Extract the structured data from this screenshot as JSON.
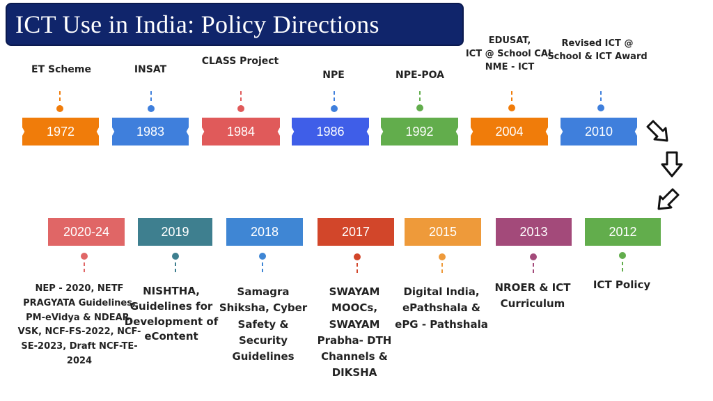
{
  "title": "ICT Use in India: Policy Directions",
  "top_row": [
    {
      "year": "1972",
      "label": "ET Scheme",
      "color": "#f07c0a"
    },
    {
      "year": "1983",
      "label": "INSAT",
      "color": "#3f7fdc"
    },
    {
      "year": "1984",
      "label": "CLASS Project",
      "color": "#e05a5a"
    },
    {
      "year": "1986",
      "label": "NPE",
      "color": "#3f5ee8"
    },
    {
      "year": "1992",
      "label": "NPE-POA",
      "color": "#62ad4c"
    },
    {
      "year": "2004",
      "label": "EDUSAT,\nICT @ School CAL\nNME - ICT",
      "color": "#f07c0a"
    },
    {
      "year": "2010",
      "label": "Revised ICT @\nSchool & ICT Award",
      "color": "#3f7fdc"
    }
  ],
  "bottom_row": [
    {
      "year": "2020-24",
      "label": "NEP - 2020,  NETF\nPRAGYATA Guidelines,\nPM-eVidya & NDEAR,\nVSK, NCF-FS-2022, NCF-\nSE-2023, Draft NCF-TE-\n2024",
      "color": "#e06666"
    },
    {
      "year": "2019",
      "label": "NISHTHA,\nGuidelines for\nDevelopment of\neContent",
      "color": "#3e7f8f"
    },
    {
      "year": "2018",
      "label": "Samagra\nShiksha, Cyber\nSafety &\nSecurity\nGuidelines",
      "color": "#3f86d4"
    },
    {
      "year": "2017",
      "label": "SWAYAM\nMOOCs,\nSWAYAM\nPrabha- DTH\nChannels &\nDIKSHA",
      "color": "#d2462a"
    },
    {
      "year": "2015",
      "label": "Digital India,\nePathshala &\nePG - Pathshala",
      "color": "#ee9a3a"
    },
    {
      "year": "2013",
      "label": "NROER & ICT\nCurriculum",
      "color": "#a34a7a"
    },
    {
      "year": "2012",
      "label": "ICT Policy",
      "color": "#62ad4c"
    }
  ],
  "arrows": [
    "arrow-down-right",
    "arrow-down",
    "arrow-down-left"
  ]
}
